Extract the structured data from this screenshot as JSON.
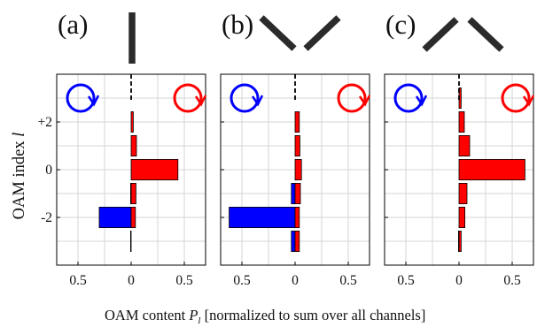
{
  "chart_data": {
    "type": "bar",
    "orientation": "horizontal",
    "ylabel": "OAM index",
    "ylabel_symbol": "l",
    "xlabel_prefix": "OAM content",
    "xlabel_symbol": "P",
    "xlabel_subscript": "l",
    "xlabel_suffix": "[normalized to sum over all channels]",
    "y_tick_labels": [
      "+2",
      "0",
      "-2"
    ],
    "x_tick_labels": [
      "0.5",
      "0",
      "0.5"
    ],
    "xlim_display": [
      -0.7,
      0.7
    ],
    "ylim": [
      -4,
      4
    ],
    "grid": true,
    "colors": {
      "left": "#0000ff",
      "right": "#ff0000",
      "orientation_bar": "#2b2b2b"
    },
    "legend": {
      "left": "blue circular-polarization icon (top-left)",
      "right": "red circular-polarization icon (top-right)"
    },
    "panels": [
      {
        "label": "(a)",
        "inset": "vertical",
        "l": [
          -3,
          -2,
          -1,
          0,
          1,
          2,
          3
        ],
        "left_values": [
          0.005,
          0.3,
          0.005,
          0.0,
          0.0,
          0.0,
          0.0
        ],
        "right_values": [
          0.0,
          0.04,
          0.045,
          0.44,
          0.05,
          0.02,
          0.0
        ]
      },
      {
        "label": "(b)",
        "inset": "v-shape",
        "l": [
          -3,
          -2,
          -1,
          0,
          1,
          2,
          3
        ],
        "left_values": [
          0.035,
          0.62,
          0.035,
          0.0,
          0.0,
          0.0,
          0.0
        ],
        "right_values": [
          0.04,
          0.04,
          0.05,
          0.06,
          0.045,
          0.04,
          0.0
        ]
      },
      {
        "label": "(c)",
        "inset": "caret",
        "l": [
          -3,
          -2,
          -1,
          0,
          1,
          2,
          3
        ],
        "left_values": [
          0.005,
          0.0,
          0.0,
          0.0,
          0.0,
          0.0,
          0.0
        ],
        "right_values": [
          0.02,
          0.055,
          0.075,
          0.62,
          0.1,
          0.05,
          0.02
        ]
      }
    ]
  }
}
